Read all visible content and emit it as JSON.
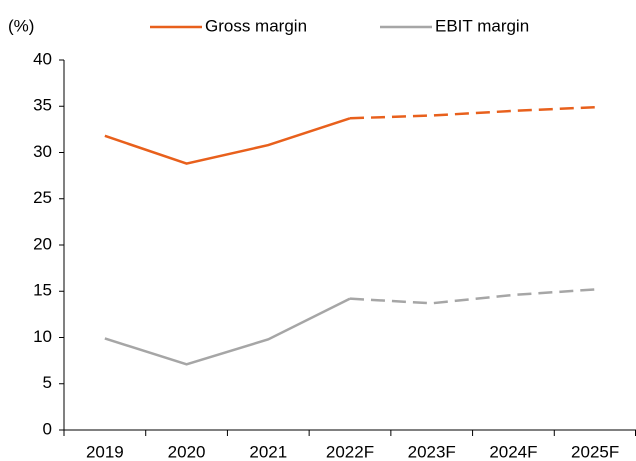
{
  "chart_data": {
    "type": "line",
    "y_label": "(%)",
    "categories": [
      "2019",
      "2020",
      "2021",
      "2022F",
      "2023F",
      "2024F",
      "2025F"
    ],
    "series": [
      {
        "name": "Gross margin",
        "color": "#e8601c",
        "values": [
          31.8,
          28.8,
          30.8,
          33.7,
          34.0,
          34.5,
          34.9
        ]
      },
      {
        "name": "EBIT margin",
        "color": "#a6a6a6",
        "values": [
          9.9,
          7.1,
          9.8,
          14.2,
          13.7,
          14.6,
          15.2
        ]
      }
    ],
    "dash_from_index": 3,
    "ylim": [
      0,
      40
    ],
    "yticks": [
      0,
      5,
      10,
      15,
      20,
      25,
      30,
      35,
      40
    ],
    "grid": false,
    "legend": "top"
  }
}
